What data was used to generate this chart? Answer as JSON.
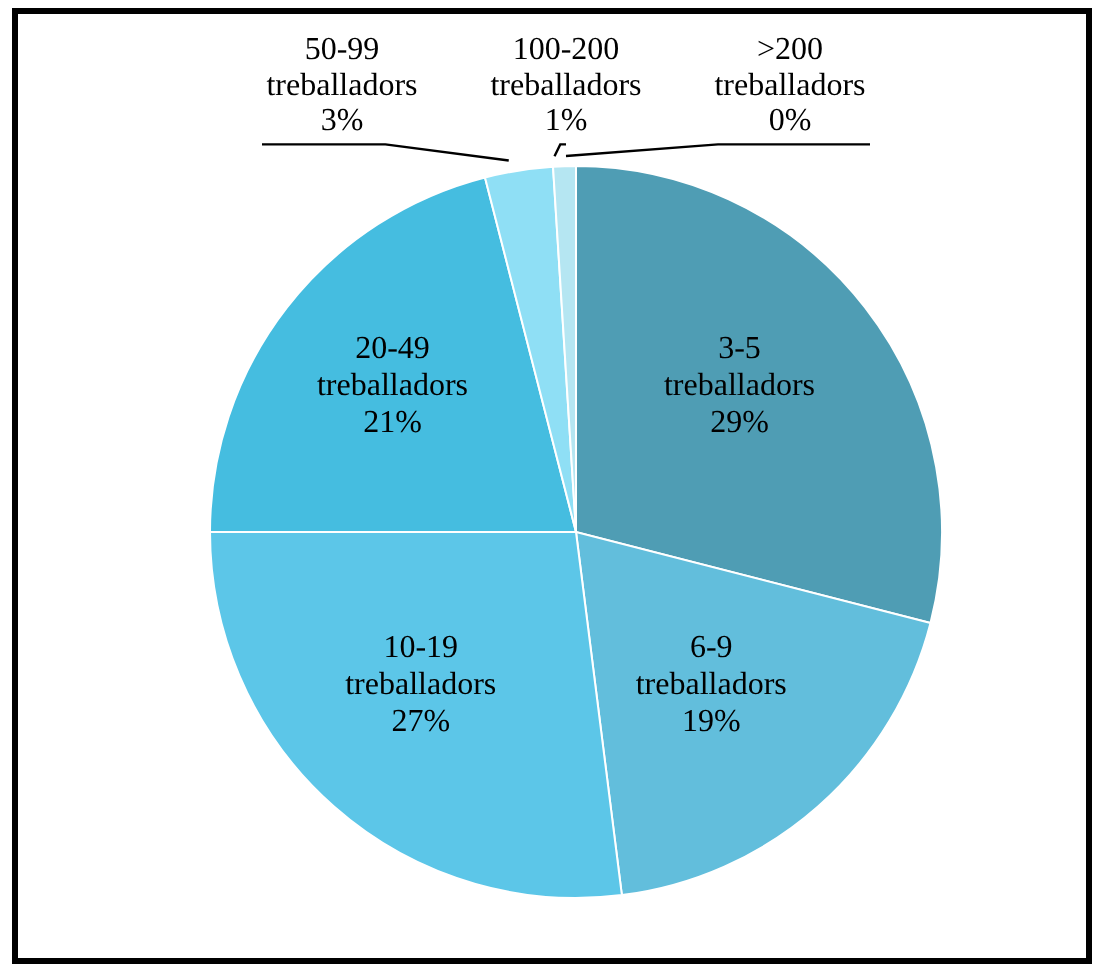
{
  "chart_data": {
    "type": "pie",
    "categories": [
      "3-5 treballadors",
      "6-9 treballadors",
      "10-19 treballadors",
      "20-49 treballadors",
      "50-99 treballadors",
      "100-200 treballadors",
      ">200 treballadors"
    ],
    "values": [
      29,
      19,
      27,
      21,
      3,
      1,
      0
    ],
    "value_labels": [
      "29%",
      "19%",
      "27%",
      "21%",
      "3%",
      "1%",
      "0%"
    ],
    "colors": [
      "#4f9db4",
      "#62bedc",
      "#5cc6e8",
      "#45bde0",
      "#8fdff5",
      "#b5e6f2",
      "#d8f3fa"
    ]
  }
}
